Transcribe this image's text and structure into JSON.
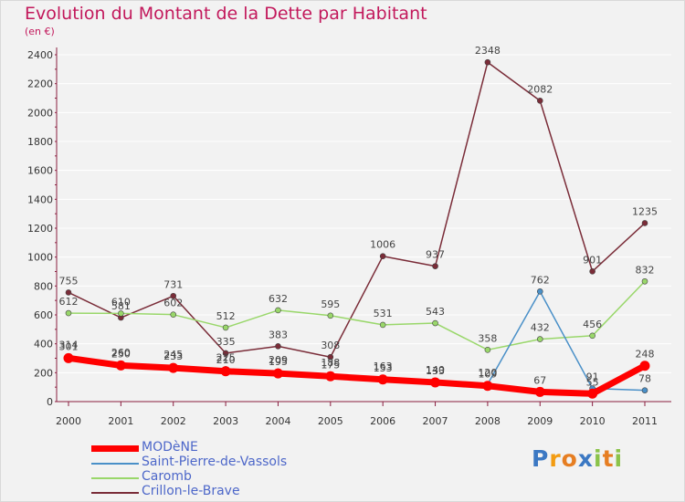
{
  "header": {
    "title": "Evolution du Montant de la Dette par Habitant",
    "subtitle": "(en €)"
  },
  "logo": {
    "text": "Proxiti"
  },
  "chart_data": {
    "type": "line",
    "title": "Evolution du Montant de la Dette par Habitant",
    "subtitle": "(en €)",
    "x": [
      "2000",
      "2001",
      "2002",
      "2003",
      "2004",
      "2005",
      "2006",
      "2007",
      "2008",
      "2009",
      "2010",
      "2011"
    ],
    "ylim": [
      0,
      2400
    ],
    "yticks": [
      0,
      200,
      400,
      600,
      800,
      1000,
      1200,
      1400,
      1600,
      1800,
      2000,
      2200,
      2400
    ],
    "grid": true,
    "legend_position": "bottom-left",
    "series": [
      {
        "name": "MODèNE",
        "color": "#ff0000",
        "values": [
          301,
          250,
          233,
          210,
          195,
          175,
          153,
          133,
          109,
          67,
          55,
          248
        ],
        "labels": [
          "301",
          "250",
          "233",
          "210",
          "195",
          "175",
          "153",
          "133",
          "109",
          "67",
          "55",
          "248"
        ]
      },
      {
        "name": "Saint-Pierre-de-Vassols",
        "color": "#4a90c8",
        "values": [
          314,
          260,
          245,
          225,
          209,
          188,
          163,
          140,
          120,
          762,
          91,
          78
        ],
        "labels": [
          "314",
          "260",
          "245",
          "225",
          "209",
          "188",
          "163",
          "140",
          "120",
          "762",
          "91",
          "78"
        ]
      },
      {
        "name": "Caromb",
        "color": "#99d76a",
        "values": [
          612,
          610,
          602,
          512,
          632,
          595,
          531,
          543,
          358,
          432,
          456,
          832
        ],
        "labels": [
          "612",
          "610",
          "602",
          "512",
          "632",
          "595",
          "531",
          "543",
          "358",
          "432",
          "456",
          "832"
        ]
      },
      {
        "name": "Crillon-le-Brave",
        "color": "#7a2c38",
        "values": [
          755,
          581,
          731,
          335,
          383,
          308,
          1006,
          937,
          2348,
          2082,
          901,
          1235
        ],
        "labels": [
          "755",
          "581",
          "731",
          "335",
          "383",
          "308",
          "1006",
          "937",
          "2348",
          "2082",
          "901",
          "1235"
        ]
      }
    ]
  },
  "colors": {
    "title": "#c2185b",
    "legend_text": "#4d67c9",
    "background": "#f2f2f2",
    "axis": "#8a1d3f",
    "grid": "#ffffff"
  }
}
